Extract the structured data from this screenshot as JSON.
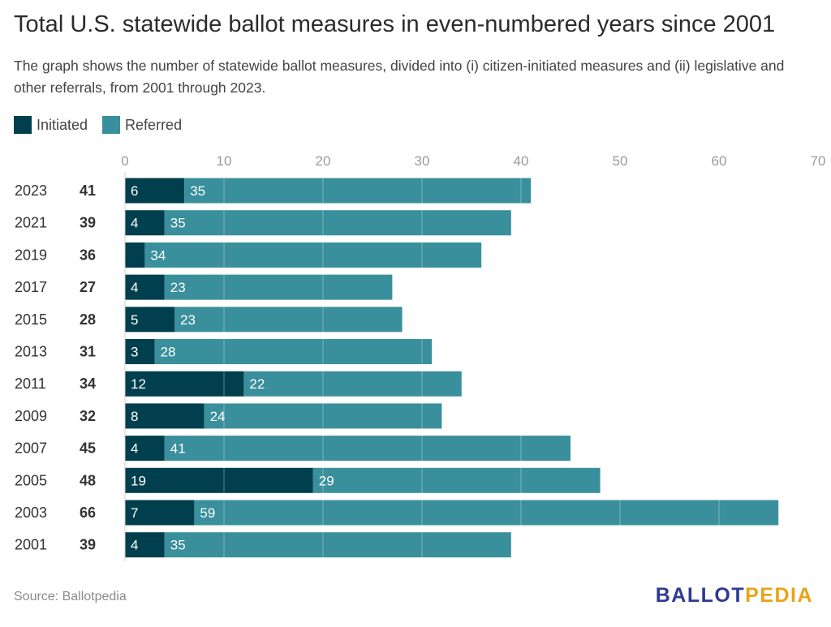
{
  "title": "Total U.S. statewide ballot measures in even-numbered years since 2001",
  "subtitle": "The graph shows the number of statewide ballot measures, divided into (i) citizen-initiated measures and (ii) legislative and other referrals, from 2001 through 2023.",
  "source": "Source: Ballotpedia",
  "logo": {
    "part1": "BALLOT",
    "part2": "PEDIA"
  },
  "colors": {
    "initiated": "#003f4d",
    "referred": "#3a8f9c",
    "gridline": "#d9d9d9",
    "text": "#333333"
  },
  "chart_data": {
    "type": "bar",
    "orientation": "horizontal",
    "stacked": true,
    "categories": [
      "2023",
      "2021",
      "2019",
      "2017",
      "2015",
      "2013",
      "2011",
      "2009",
      "2007",
      "2005",
      "2003",
      "2001"
    ],
    "totals": [
      "41",
      "39",
      "36",
      "27",
      "28",
      "31",
      "34",
      "32",
      "45",
      "48",
      "66",
      "39"
    ],
    "series": [
      {
        "name": "Initiated",
        "values": [
          6,
          4,
          2,
          4,
          5,
          3,
          12,
          8,
          4,
          19,
          7,
          4
        ],
        "labels": [
          "6",
          "4",
          "",
          "4",
          "5",
          "3",
          "12",
          "8",
          "4",
          "19",
          "7",
          "4"
        ]
      },
      {
        "name": "Referred",
        "values": [
          35,
          35,
          34,
          23,
          23,
          28,
          22,
          24,
          41,
          29,
          59,
          35
        ],
        "labels": [
          "35",
          "35",
          "34",
          "23",
          "23",
          "28",
          "22",
          "24",
          "41",
          "29",
          "59",
          "35"
        ]
      }
    ],
    "xlim": [
      0,
      70
    ],
    "xticks": [
      "0",
      "10",
      "20",
      "30",
      "40",
      "50",
      "60",
      "70"
    ],
    "x_axis_position": "top",
    "grid": true,
    "legend_placement": "top-left"
  }
}
